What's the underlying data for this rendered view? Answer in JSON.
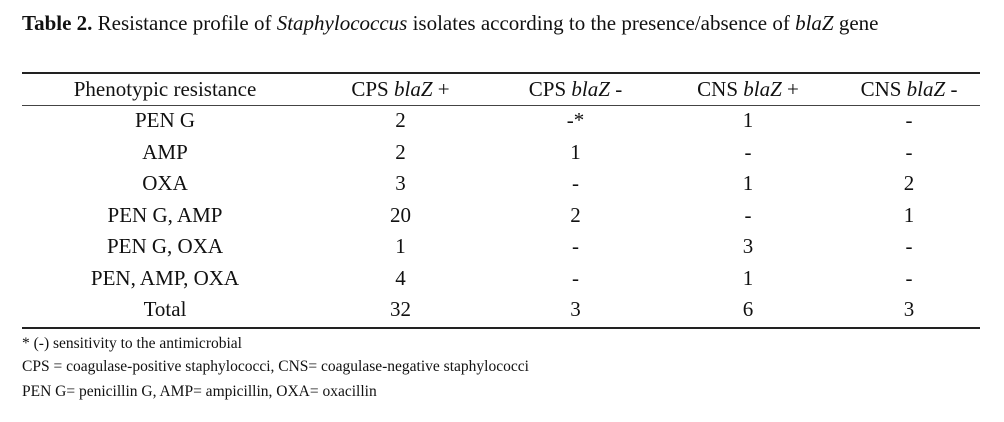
{
  "caption": {
    "label": "Table 2.",
    "text_1": " Resistance profile of ",
    "genus": "Staphylococcus",
    "text_2": " isolates according to the presence/absence of ",
    "gene_name": "blaZ",
    "text_3": " gene"
  },
  "table": {
    "headers": [
      {
        "pre": "Phenotypic resistance",
        "gene": "",
        "post": ""
      },
      {
        "pre": "CPS ",
        "gene": "blaZ",
        "post": " +"
      },
      {
        "pre": "CPS ",
        "gene": "blaZ",
        "post": " -"
      },
      {
        "pre": "CNS ",
        "gene": "blaZ",
        "post": " +"
      },
      {
        "pre": "CNS ",
        "gene": "blaZ",
        "post": " -"
      }
    ],
    "rows": [
      [
        "PEN G",
        "2",
        "-*",
        "1",
        "-"
      ],
      [
        "AMP",
        "2",
        "1",
        "-",
        "-"
      ],
      [
        "OXA",
        "3",
        "-",
        "1",
        "2"
      ],
      [
        "PEN G, AMP",
        "20",
        "2",
        "-",
        "1"
      ],
      [
        "PEN G, OXA",
        "1",
        "-",
        "3",
        "-"
      ],
      [
        "PEN, AMP, OXA",
        "4",
        "-",
        "1",
        "-"
      ],
      [
        "Total",
        "32",
        "3",
        "6",
        "3"
      ]
    ]
  },
  "footnotes": [
    "* (-) sensitivity to the antimicrobial",
    "CPS = coagulase-positive staphylococci, CNS= coagulase-negative staphylococci",
    "PEN G= penicillin G, AMP= ampicillin, OXA= oxacillin"
  ]
}
